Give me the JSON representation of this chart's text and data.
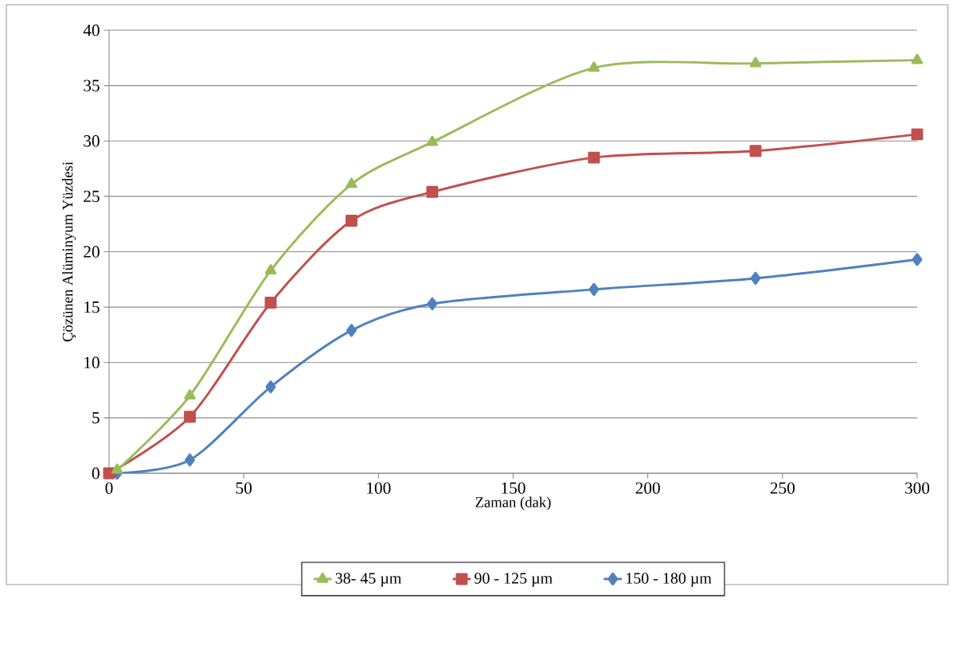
{
  "chart_data": {
    "type": "line",
    "xlabel": "Zaman (dak)",
    "ylabel": "Çözünen Alüminyum Yüzdesi",
    "xlim": [
      0,
      300
    ],
    "xticks": [
      0,
      50,
      100,
      150,
      200,
      250,
      300
    ],
    "ylim": [
      0,
      40
    ],
    "yticks": [
      0,
      5,
      10,
      15,
      20,
      25,
      30,
      35,
      40
    ],
    "grid": "y",
    "legend": "bottom",
    "series": [
      {
        "name": "38- 45 µm",
        "color": "#9bbb59",
        "marker": "triangle",
        "x": [
          3,
          30,
          60,
          90,
          120,
          180,
          240,
          300
        ],
        "values": [
          0.3,
          7.0,
          18.3,
          26.1,
          29.9,
          36.6,
          37.0,
          37.3
        ]
      },
      {
        "name": "90 - 125 µm",
        "color": "#c0504d",
        "marker": "square",
        "x": [
          0,
          30,
          60,
          90,
          120,
          180,
          240,
          300
        ],
        "values": [
          0,
          5.1,
          15.4,
          22.8,
          25.4,
          28.5,
          29.1,
          30.6
        ]
      },
      {
        "name": "150 - 180 µm",
        "color": "#4f81bd",
        "marker": "diamond",
        "x": [
          3,
          30,
          60,
          90,
          120,
          180,
          240,
          300
        ],
        "values": [
          0,
          1.2,
          7.8,
          12.9,
          15.3,
          16.6,
          17.6,
          19.3
        ]
      }
    ]
  }
}
